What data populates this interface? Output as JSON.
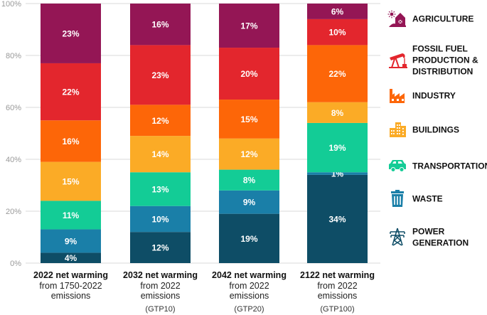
{
  "chart_data": {
    "type": "bar",
    "stacked": true,
    "normalized": true,
    "ylim": [
      0,
      100
    ],
    "yticks": [
      "0%",
      "20%",
      "40%",
      "60%",
      "80%",
      "100%"
    ],
    "categories": [
      {
        "line1": "2022 net warming",
        "line2": "from 1750-2022",
        "line3": "emissions",
        "line4": ""
      },
      {
        "line1": "2032 net warming",
        "line2": "from 2022",
        "line3": "emissions",
        "line4": "(GTP10)"
      },
      {
        "line1": "2042 net warming",
        "line2": "from 2022",
        "line3": "emissions",
        "line4": "(GTP20)"
      },
      {
        "line1": "2122 net warming",
        "line2": "from 2022",
        "line3": "emissions",
        "line4": "(GTP100)"
      }
    ],
    "series": [
      {
        "key": "power",
        "color": "#0e4d66",
        "values": [
          4,
          12,
          19,
          34
        ],
        "labels": [
          "4%",
          "12%",
          "19%",
          "34%"
        ]
      },
      {
        "key": "waste",
        "color": "#1a7fa8",
        "values": [
          9,
          10,
          9,
          1
        ],
        "labels": [
          "9%",
          "10%",
          "9%",
          "1%"
        ]
      },
      {
        "key": "transportation",
        "color": "#13cc96",
        "values": [
          11,
          13,
          8,
          19
        ],
        "labels": [
          "11%",
          "13%",
          "8%",
          "19%"
        ]
      },
      {
        "key": "buildings",
        "color": "#fbab26",
        "values": [
          15,
          14,
          12,
          8
        ],
        "labels": [
          "15%",
          "14%",
          "12%",
          "8%"
        ]
      },
      {
        "key": "industry",
        "color": "#fd6608",
        "values": [
          16,
          12,
          15,
          22
        ],
        "labels": [
          "16%",
          "12%",
          "15%",
          "22%"
        ]
      },
      {
        "key": "fossil",
        "color": "#e3262d",
        "values": [
          22,
          23,
          20,
          10
        ],
        "labels": [
          "22%",
          "23%",
          "20%",
          "10%"
        ]
      },
      {
        "key": "agriculture",
        "color": "#941655",
        "values": [
          23,
          16,
          17,
          6
        ],
        "labels": [
          "23%",
          "16%",
          "17%",
          "6%"
        ]
      }
    ],
    "legend": {
      "placement": "right",
      "items": [
        {
          "key": "agriculture",
          "icon": "farm-icon",
          "color": "#941655",
          "lines": [
            "AGRICULTURE"
          ]
        },
        {
          "key": "fossil",
          "icon": "oil-pump-icon",
          "color": "#e3262d",
          "lines": [
            "FOSSIL FUEL",
            "PRODUCTION &",
            "DISTRIBUTION"
          ]
        },
        {
          "key": "industry",
          "icon": "factory-icon",
          "color": "#fd6608",
          "lines": [
            "INDUSTRY"
          ]
        },
        {
          "key": "buildings",
          "icon": "buildings-icon",
          "color": "#fbab26",
          "lines": [
            "BUILDINGS"
          ]
        },
        {
          "key": "transportation",
          "icon": "car-icon",
          "color": "#13cc96",
          "lines": [
            "TRANSPORTATION"
          ]
        },
        {
          "key": "waste",
          "icon": "trash-can-icon",
          "color": "#1a7fa8",
          "lines": [
            "WASTE"
          ]
        },
        {
          "key": "power",
          "icon": "power-tower-icon",
          "color": "#0e4d66",
          "lines": [
            "POWER",
            "GENERATION"
          ]
        }
      ]
    }
  }
}
